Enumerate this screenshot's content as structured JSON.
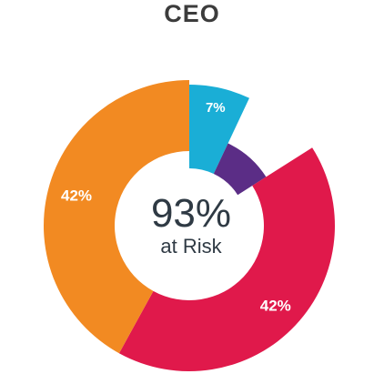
{
  "chart_data": {
    "type": "pie",
    "title": "CEO",
    "center_value": "93%",
    "center_caption": "at Risk",
    "slices": [
      {
        "label": "7%",
        "value": 7,
        "color": "#1aaed6"
      },
      {
        "label": "9%",
        "value": 9,
        "color": "#5b2d86"
      },
      {
        "label": "42%",
        "value": 42,
        "color": "#e0194b"
      },
      {
        "label": "42%",
        "value": 42,
        "color": "#f28a22"
      }
    ]
  }
}
